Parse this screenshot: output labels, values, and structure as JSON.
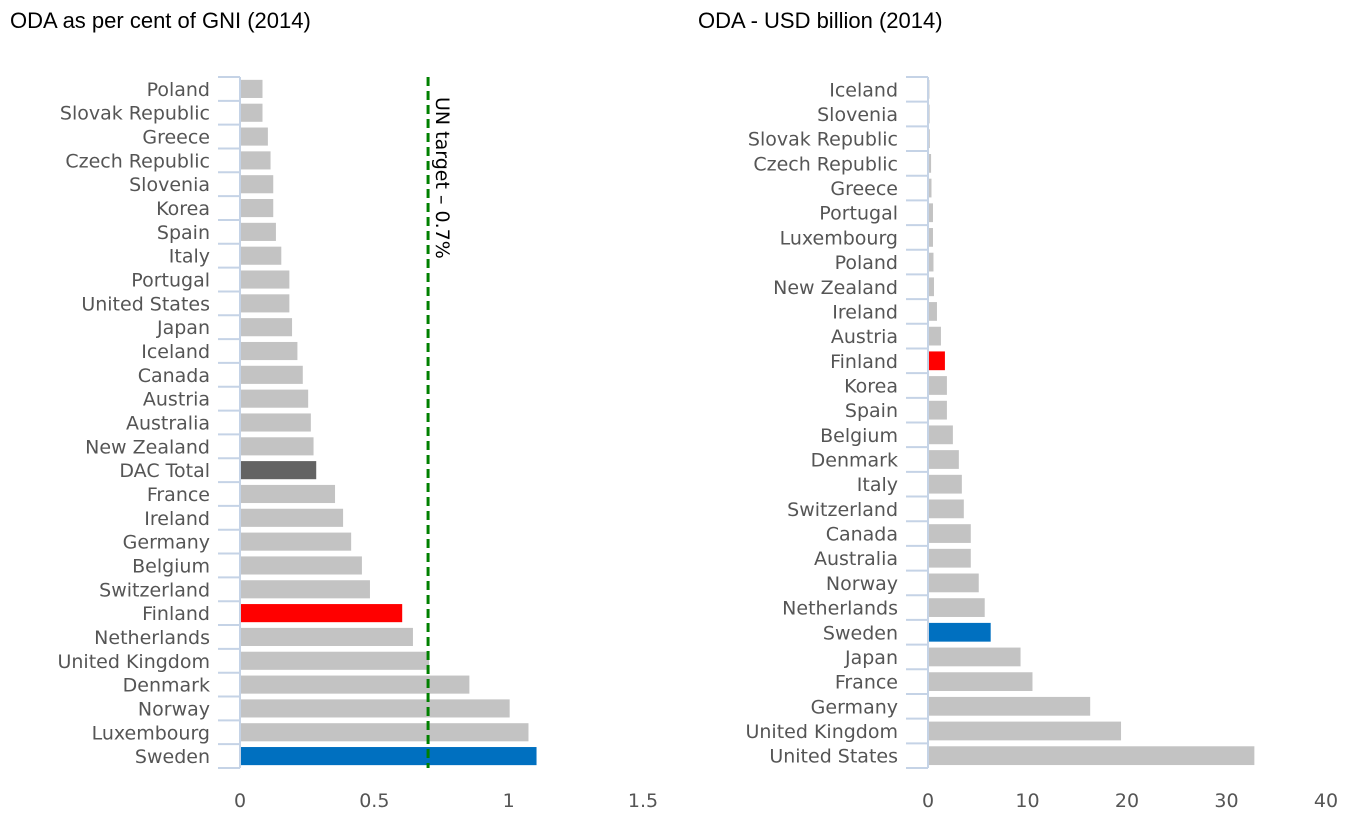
{
  "chart_data": [
    {
      "type": "bar",
      "orientation": "horizontal",
      "title": "ODA as per cent of GNI (2014)",
      "xlabel": "",
      "ylabel": "",
      "xlim": [
        0,
        1.5
      ],
      "xticks": [
        0,
        0.5,
        1,
        1.5
      ],
      "xtick_labels": [
        "0",
        "0.5",
        "1",
        "1.5"
      ],
      "grid": false,
      "legend": "none",
      "categories": [
        "Poland",
        "Slovak Republic",
        "Greece",
        "Czech Republic",
        "Slovenia",
        "Korea",
        "Spain",
        "Italy",
        "Portugal",
        "United States",
        "Japan",
        "Iceland",
        "Canada",
        "Austria",
        "Australia",
        "New Zealand",
        "DAC Total",
        "France",
        "Ireland",
        "Germany",
        "Belgium",
        "Switzerland",
        "Finland",
        "Netherlands",
        "United Kingdom",
        "Denmark",
        "Norway",
        "Luxembourg",
        "Sweden"
      ],
      "values": [
        0.08,
        0.08,
        0.1,
        0.11,
        0.12,
        0.12,
        0.13,
        0.15,
        0.18,
        0.18,
        0.19,
        0.21,
        0.23,
        0.25,
        0.26,
        0.27,
        0.28,
        0.35,
        0.38,
        0.41,
        0.45,
        0.48,
        0.6,
        0.64,
        0.7,
        0.85,
        1.0,
        1.07,
        1.1
      ],
      "highlight": {
        "Finland": "#ff0000",
        "Sweden": "#0070c0",
        "DAC Total": "#636363"
      },
      "default_color": "#c3c3c3",
      "reference_line": {
        "value": 0.7,
        "label": "UN target – 0.7%",
        "color": "#008000",
        "style": "dashed"
      }
    },
    {
      "type": "bar",
      "orientation": "horizontal",
      "title": "ODA - USD billion (2014)",
      "xlabel": "",
      "ylabel": "",
      "xlim": [
        0,
        40
      ],
      "xticks": [
        0,
        10,
        20,
        30,
        40
      ],
      "xtick_labels": [
        "0",
        "10",
        "20",
        "30",
        "40"
      ],
      "grid": false,
      "legend": "none",
      "categories": [
        "Iceland",
        "Slovenia",
        "Slovak Republic",
        "Czech Republic",
        "Greece",
        "Portugal",
        "Luxembourg",
        "Poland",
        "New Zealand",
        "Ireland",
        "Austria",
        "Finland",
        "Korea",
        "Spain",
        "Belgium",
        "Denmark",
        "Italy",
        "Switzerland",
        "Canada",
        "Australia",
        "Norway",
        "Netherlands",
        "Sweden",
        "Japan",
        "France",
        "Germany",
        "United Kingdom",
        "United States"
      ],
      "values": [
        0.04,
        0.06,
        0.08,
        0.21,
        0.25,
        0.4,
        0.4,
        0.45,
        0.5,
        0.8,
        1.2,
        1.6,
        1.8,
        1.8,
        2.4,
        3.0,
        3.3,
        3.5,
        4.2,
        4.2,
        5.0,
        5.6,
        6.2,
        9.2,
        10.4,
        16.2,
        19.3,
        32.7
      ],
      "highlight": {
        "Finland": "#ff0000",
        "Sweden": "#0070c0"
      },
      "default_color": "#c3c3c3"
    }
  ]
}
